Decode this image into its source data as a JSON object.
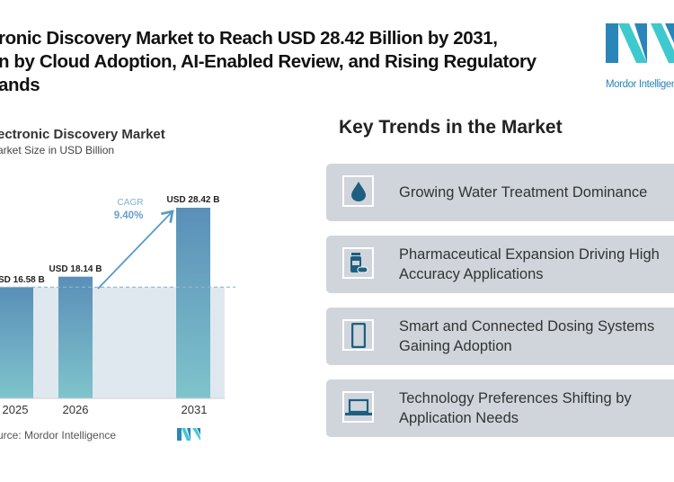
{
  "headline": {
    "lines": [
      "ronic Discovery Market to Reach USD 28.42 Billion by 2031,",
      "n by Cloud Adoption, AI-Enabled Review, and Rising Regulatory",
      "ands"
    ]
  },
  "logo": {
    "text": "Mordor Intelligence",
    "colors": [
      "#2a86b8",
      "#3ec9cf"
    ]
  },
  "chart_data": {
    "type": "bar",
    "title": "ectronic Discovery Market",
    "subtitle": "arket Size in USD Billion",
    "categories": [
      "2025",
      "2026",
      "2031"
    ],
    "values": [
      16.58,
      18.14,
      28.42
    ],
    "data_labels": [
      "SD 16.58 B",
      "USD 18.14 B",
      "USD 28.42 B"
    ],
    "annotation": {
      "label": "CAGR",
      "value": "9.40%"
    },
    "ylim": [
      0,
      30
    ],
    "grid": false,
    "source": "urce: Mordor Intelligence",
    "colors": {
      "bar_top": "#5a8fb8",
      "bar_bottom": "#7fc4cc",
      "shade": "#dfe8ef",
      "accent": "#5b9ac4"
    }
  },
  "trends": {
    "title": "Key Trends in the Market",
    "items": [
      {
        "icon": "water-drop-icon",
        "text": "Growing Water Treatment Dominance"
      },
      {
        "icon": "medicine-bottle-icon",
        "text": "Pharmaceutical Expansion Driving High\nAccuracy Applications"
      },
      {
        "icon": "smartphone-icon",
        "text": "Smart and Connected Dosing Systems\nGaining Adoption"
      },
      {
        "icon": "laptop-icon",
        "text": "Technology Preferences Shifting by\nApplication Needs"
      }
    ],
    "icon_color": "#1d5f80"
  }
}
